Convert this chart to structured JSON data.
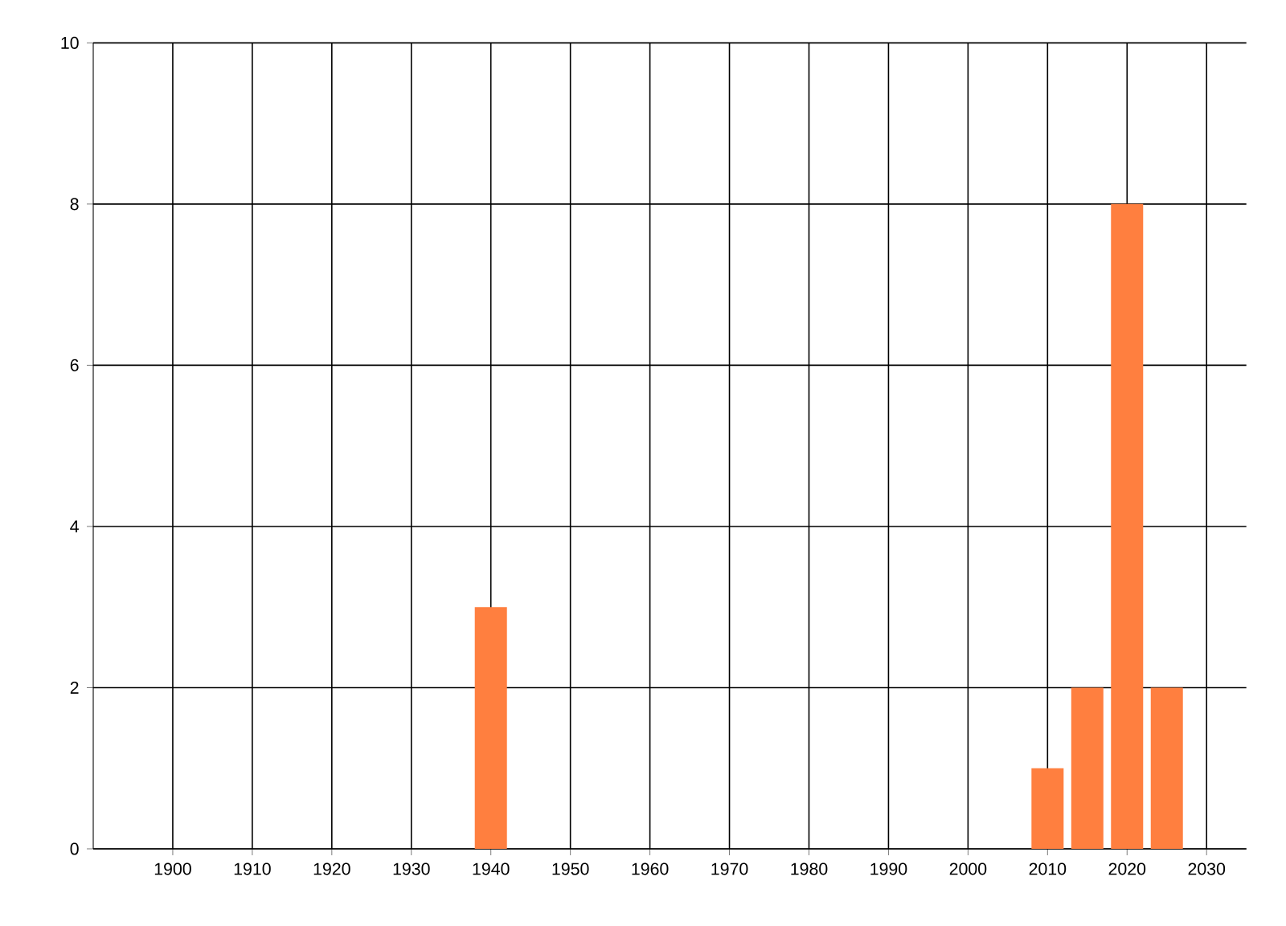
{
  "chart_data": {
    "type": "bar",
    "x": [
      1940,
      2010,
      2015,
      2020,
      2025
    ],
    "values": [
      3,
      1,
      2,
      8,
      2
    ],
    "color": "#ff7f3f",
    "xlim": [
      1890,
      2035
    ],
    "xticks": [
      1900,
      1910,
      1920,
      1930,
      1940,
      1950,
      1960,
      1970,
      1980,
      1990,
      2000,
      2010,
      2020,
      2030
    ],
    "ylim": [
      0,
      10
    ],
    "yticks": [
      0,
      2,
      4,
      6,
      8,
      10
    ],
    "grid": true
  }
}
